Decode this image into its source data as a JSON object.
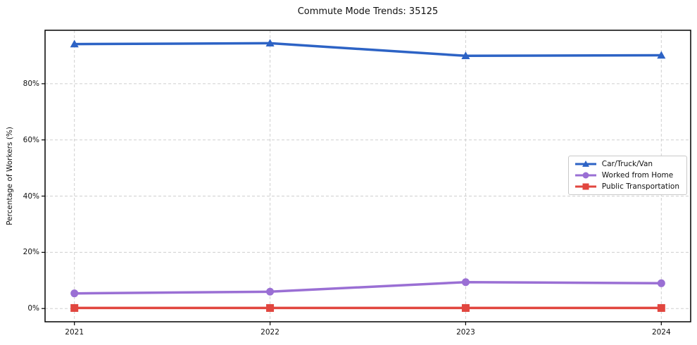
{
  "chart_data": {
    "type": "line",
    "title": "Commute Mode Trends: 35125",
    "xlabel": "",
    "ylabel": "Percentage of Workers (%)",
    "x": [
      2021,
      2022,
      2023,
      2024
    ],
    "categories": [
      "2021",
      "2022",
      "2023",
      "2024"
    ],
    "series": [
      {
        "name": "Car/Truck/Van",
        "values": [
          94.1,
          94.4,
          89.9,
          90.1
        ],
        "color": "#2d63c5",
        "marker": "triangle"
      },
      {
        "name": "Worked from Home",
        "values": [
          5.4,
          6.0,
          9.4,
          9.0
        ],
        "color": "#9a6fd4",
        "marker": "circle"
      },
      {
        "name": "Public Transportation",
        "values": [
          0.2,
          0.2,
          0.2,
          0.2
        ],
        "color": "#e1463f",
        "marker": "square"
      }
    ],
    "y_ticks": [
      0,
      20,
      40,
      60,
      80
    ],
    "y_tick_labels": [
      "0%",
      "20%",
      "40%",
      "60%",
      "80%"
    ],
    "ylim": [
      -4.7,
      99.0
    ],
    "xlim": [
      2020.85,
      2024.15
    ],
    "grid": true,
    "grid_style": "dashed",
    "legend_position": "center-right",
    "colors": {
      "grid": "#cfcfcf",
      "plot_border": "#000000",
      "background": "#ffffff",
      "text": "#111111",
      "legend_border": "#c9c9c9"
    }
  }
}
